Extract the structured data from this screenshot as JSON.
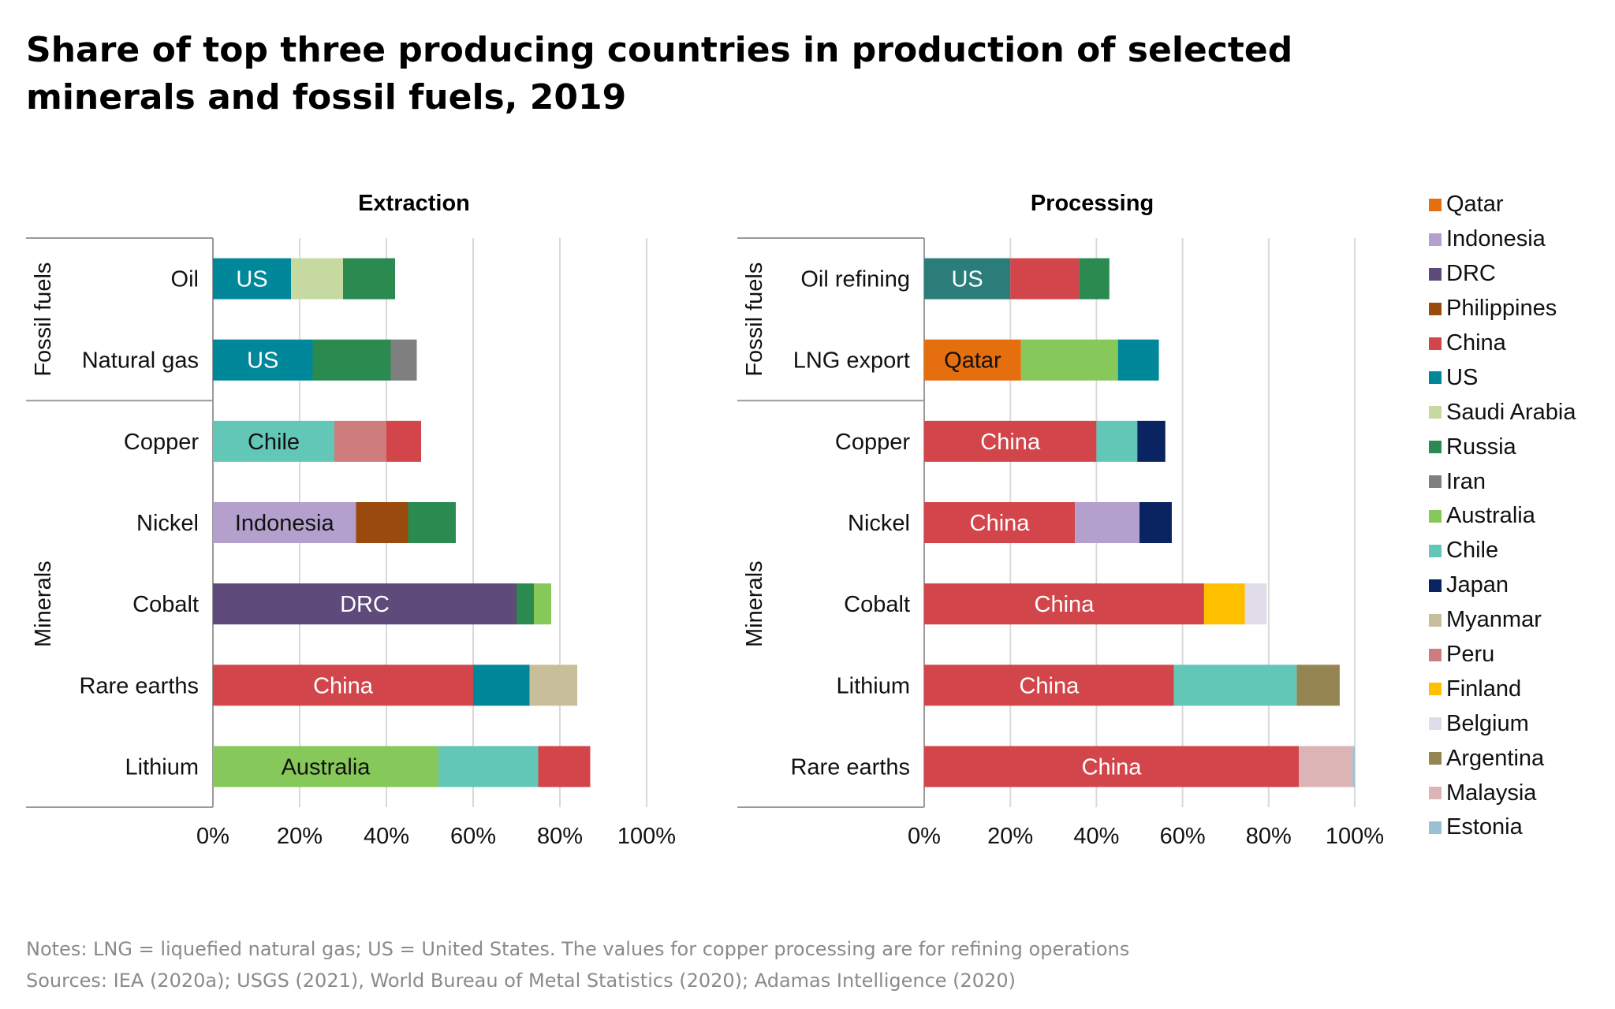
{
  "title": "Share of top three producing countries in production of selected minerals and fossil fuels, 2019",
  "colors": {
    "Qatar": "#e56e0f",
    "Indonesia": "#b3a0cc",
    "DRC": "#5f4b7b",
    "Philippines": "#9a4a0c",
    "China": "#d2464b",
    "US": "#00879a",
    "Saudi Arabia": "#c5d9a0",
    "Russia": "#2a8a50",
    "Iran": "#7f7f7f",
    "Australia": "#86c95a",
    "Chile": "#63c7b8",
    "Japan": "#0a2461",
    "Myanmar": "#c8bf9a",
    "Peru": "#cf7c7c",
    "Finland": "#ffc000",
    "Belgium": "#e0dcea",
    "Argentina": "#948553",
    "Malaysia": "#ddb4b5",
    "Estonia": "#9ac1d3"
  },
  "legend": [
    "Qatar",
    "Indonesia",
    "DRC",
    "Philippines",
    "China",
    "US",
    "Saudi Arabia",
    "Russia",
    "Iran",
    "Australia",
    "Chile",
    "Japan",
    "Myanmar",
    "Peru",
    "Finland",
    "Belgium",
    "Argentina",
    "Malaysia",
    "Estonia"
  ],
  "chart_data": [
    {
      "type": "bar",
      "orientation": "horizontal",
      "stacked": true,
      "title": "Extraction",
      "xlim": [
        0,
        100
      ],
      "x_ticks": [
        "0%",
        "20%",
        "40%",
        "60%",
        "80%",
        "100%"
      ],
      "grid": true,
      "groups": [
        {
          "label": "Fossil fuels",
          "categories": [
            {
              "name": "Oil",
              "segments": [
                {
                  "country": "US",
                  "value": 18,
                  "label": "US"
                },
                {
                  "country": "Saudi Arabia",
                  "value": 12
                },
                {
                  "country": "Russia",
                  "value": 12
                }
              ]
            },
            {
              "name": "Natural gas",
              "segments": [
                {
                  "country": "US",
                  "value": 23,
                  "label": "US"
                },
                {
                  "country": "Russia",
                  "value": 18
                },
                {
                  "country": "Iran",
                  "value": 6
                }
              ]
            }
          ]
        },
        {
          "label": "Minerals",
          "categories": [
            {
              "name": "Copper",
              "segments": [
                {
                  "country": "Chile",
                  "value": 28,
                  "label": "Chile"
                },
                {
                  "country": "Peru",
                  "value": 12
                },
                {
                  "country": "China",
                  "value": 8
                }
              ]
            },
            {
              "name": "Nickel",
              "segments": [
                {
                  "country": "Indonesia",
                  "value": 33,
                  "label": "Indonesia"
                },
                {
                  "country": "Philippines",
                  "value": 12
                },
                {
                  "country": "Russia",
                  "value": 11
                }
              ]
            },
            {
              "name": "Cobalt",
              "segments": [
                {
                  "country": "DRC",
                  "value": 70,
                  "label": "DRC"
                },
                {
                  "country": "Russia",
                  "value": 4
                },
                {
                  "country": "Australia",
                  "value": 4
                }
              ]
            },
            {
              "name": "Rare earths",
              "segments": [
                {
                  "country": "China",
                  "value": 60,
                  "label": "China"
                },
                {
                  "country": "US",
                  "value": 13
                },
                {
                  "country": "Myanmar",
                  "value": 11
                }
              ]
            },
            {
              "name": "Lithium",
              "segments": [
                {
                  "country": "Australia",
                  "value": 52,
                  "label": "Australia"
                },
                {
                  "country": "Chile",
                  "value": 23
                },
                {
                  "country": "China",
                  "value": 12
                }
              ]
            }
          ]
        }
      ]
    },
    {
      "type": "bar",
      "orientation": "horizontal",
      "stacked": true,
      "title": "Processing",
      "xlim": [
        0,
        100
      ],
      "x_ticks": [
        "0%",
        "20%",
        "40%",
        "60%",
        "80%",
        "100%"
      ],
      "grid": true,
      "groups": [
        {
          "label": "Fossil fuels",
          "categories": [
            {
              "name": "Oil refining",
              "segments": [
                {
                  "country": "US",
                  "value": 20,
                  "label": "US",
                  "color": "#2a7d78"
                },
                {
                  "country": "China",
                  "value": 16
                },
                {
                  "country": "Russia",
                  "value": 7
                }
              ]
            },
            {
              "name": "LNG export",
              "segments": [
                {
                  "country": "Qatar",
                  "value": 22.5,
                  "label": "Qatar"
                },
                {
                  "country": "Australia",
                  "value": 22.5
                },
                {
                  "country": "US",
                  "value": 9.5
                }
              ]
            }
          ]
        },
        {
          "label": "Minerals",
          "categories": [
            {
              "name": "Copper",
              "segments": [
                {
                  "country": "China",
                  "value": 40,
                  "label": "China"
                },
                {
                  "country": "Chile",
                  "value": 9.5
                },
                {
                  "country": "Japan",
                  "value": 6.5
                }
              ]
            },
            {
              "name": "Nickel",
              "segments": [
                {
                  "country": "China",
                  "value": 35,
                  "label": "China"
                },
                {
                  "country": "Indonesia",
                  "value": 15
                },
                {
                  "country": "Japan",
                  "value": 7.5
                }
              ]
            },
            {
              "name": "Cobalt",
              "segments": [
                {
                  "country": "China",
                  "value": 65,
                  "label": "China"
                },
                {
                  "country": "Finland",
                  "value": 9.5
                },
                {
                  "country": "Belgium",
                  "value": 5
                }
              ]
            },
            {
              "name": "Lithium",
              "segments": [
                {
                  "country": "China",
                  "value": 58,
                  "label": "China"
                },
                {
                  "country": "Chile",
                  "value": 28.5
                },
                {
                  "country": "Argentina",
                  "value": 10
                }
              ]
            },
            {
              "name": "Rare earths",
              "segments": [
                {
                  "country": "China",
                  "value": 87,
                  "label": "China"
                },
                {
                  "country": "Malaysia",
                  "value": 12.5
                },
                {
                  "country": "Estonia",
                  "value": 0.5
                }
              ]
            }
          ]
        }
      ]
    }
  ],
  "notes": "Notes: LNG = liquefied natural gas; US = United States. The values for copper processing are for refining operations",
  "sources": "Sources: IEA (2020a); USGS (2021), World Bureau of Metal Statistics (2020); Adamas Intelligence (2020)"
}
